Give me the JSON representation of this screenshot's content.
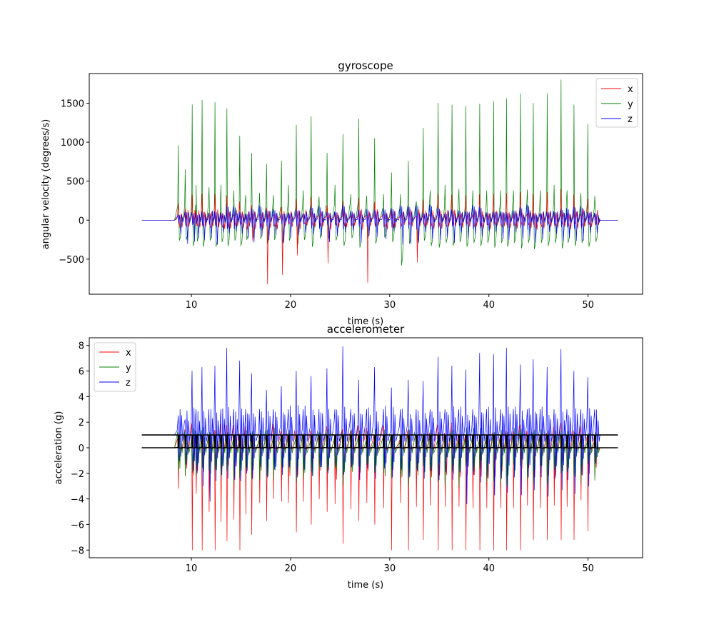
{
  "chart_data": [
    {
      "type": "line",
      "title": "gyroscope",
      "xlabel": "time (s)",
      "ylabel": "angular velocity (degrees/s)",
      "xlim": [
        -0.3,
        55.5
      ],
      "ylim": [
        -950,
        1880
      ],
      "xticks": [
        10,
        20,
        30,
        40,
        50
      ],
      "yticks": [
        -500,
        0,
        500,
        1000,
        1500
      ],
      "legend": "top-right",
      "trace_start": 5,
      "trace_end": 53,
      "idle_start": 8.3,
      "idle_end": 51.2,
      "series": [
        {
          "name": "x",
          "color": "#ff0000"
        },
        {
          "name": "y",
          "color": "#008000"
        },
        {
          "name": "z",
          "color": "#0000ff"
        }
      ],
      "events": {
        "t": [
          8.7,
          9.4,
          10.1,
          10.5,
          11.1,
          11.8,
          12.4,
          13.0,
          13.6,
          14.3,
          14.9,
          15.5,
          16.1,
          16.9,
          17.6,
          18.3,
          19.1,
          19.8,
          20.6,
          21.3,
          22.1,
          22.9,
          23.7,
          24.5,
          25.3,
          26.1,
          26.9,
          27.7,
          28.5,
          29.4,
          30.2,
          31.1,
          31.9,
          32.7,
          33.4,
          34.1,
          34.9,
          35.6,
          36.3,
          37.0,
          37.7,
          38.4,
          39.1,
          39.8,
          40.5,
          41.2,
          41.8,
          42.5,
          43.2,
          43.9,
          44.5,
          45.2,
          45.9,
          46.6,
          47.3,
          47.9,
          48.6,
          49.3,
          50.0,
          50.7
        ],
        "gyro_y_peak": [
          960,
          650,
          1480,
          450,
          1540,
          420,
          1510,
          450,
          1430,
          380,
          1080,
          320,
          860,
          350,
          720,
          320,
          760,
          450,
          1220,
          380,
          1330,
          300,
          860,
          450,
          1100,
          330,
          1300,
          310,
          1050,
          330,
          610,
          330,
          760,
          240,
          1180,
          380,
          1500,
          450,
          1480,
          400,
          1460,
          380,
          1490,
          380,
          1520,
          380,
          1560,
          380,
          1620,
          390,
          1500,
          380,
          1620,
          450,
          1800,
          380,
          1480,
          350,
          1230,
          310
        ],
        "gyro_y_trough": [
          -260,
          -250,
          -330,
          -270,
          -340,
          -260,
          -340,
          -280,
          -330,
          -260,
          -330,
          -250,
          -230,
          -240,
          -300,
          -250,
          -300,
          -260,
          -330,
          -250,
          -340,
          -230,
          -250,
          -260,
          -330,
          -230,
          -350,
          -230,
          -300,
          -220,
          -280,
          -580,
          -300,
          -280,
          -260,
          -330,
          -350,
          -290,
          -330,
          -280,
          -340,
          -290,
          -330,
          -290,
          -350,
          -290,
          -340,
          -290,
          -360,
          -290,
          -370,
          -290,
          -330,
          -290,
          -360,
          -290,
          -330,
          -290,
          -340,
          -280
        ],
        "gyro_x_low": [
          -20,
          -40,
          -30,
          -70,
          -40,
          -80,
          -30,
          -70,
          -40,
          -70,
          -30,
          -120,
          -260,
          -40,
          -820,
          -60,
          -700,
          -40,
          -450,
          -40,
          -30,
          -40,
          -550,
          -40,
          -30,
          -80,
          -30,
          -800,
          -30,
          -80,
          -30,
          -80,
          -30,
          -540,
          -30,
          -80,
          -30,
          -60,
          -30,
          -60,
          -30,
          -80,
          -30,
          -60,
          -30,
          -70,
          -30,
          -60,
          -30,
          -60,
          -30,
          -70,
          -30,
          -60,
          -30,
          -70,
          -30,
          -80,
          -30,
          -60
        ],
        "acc_z_peak": [
          2.5,
          2.2,
          6.0,
          3.0,
          6.3,
          3.0,
          6.4,
          3.0,
          7.8,
          3.0,
          6.8,
          3.0,
          5.8,
          3.0,
          4.5,
          3.0,
          4.8,
          3.0,
          6.0,
          3.0,
          5.6,
          3.0,
          6.2,
          3.0,
          7.9,
          3.0,
          5.3,
          3.0,
          6.3,
          3.0,
          4.7,
          3.0,
          5.3,
          3.0,
          5.2,
          3.0,
          7.1,
          3.0,
          6.4,
          3.0,
          6.1,
          3.0,
          7.4,
          3.0,
          7.3,
          3.0,
          7.8,
          3.0,
          6.5,
          3.0,
          6.9,
          3.0,
          6.3,
          3.0,
          7.7,
          3.0,
          6.0,
          3.0,
          5.5,
          3.0
        ],
        "acc_x_low": [
          -3.2,
          -2.2,
          -8.0,
          -3.6,
          -8.0,
          -5.0,
          -8.0,
          -5.8,
          -7.3,
          -5.6,
          -8.0,
          -5.2,
          -6.8,
          -4.3,
          -5.7,
          -4.0,
          -4.2,
          -4.3,
          -6.6,
          -4.2,
          -6.0,
          -4.0,
          -5.0,
          -4.4,
          -7.5,
          -4.8,
          -5.7,
          -4.3,
          -6.0,
          -4.7,
          -8.0,
          -4.3,
          -8.0,
          -4.6,
          -7.2,
          -4.5,
          -8.0,
          -4.6,
          -8.0,
          -4.6,
          -8.0,
          -4.7,
          -8.0,
          -4.7,
          -8.0,
          -4.7,
          -8.0,
          -4.7,
          -8.0,
          -4.5,
          -7.2,
          -4.7,
          -7.2,
          -4.5,
          -7.2,
          -4.6,
          -7.2,
          -4.1,
          -6.5,
          -2.3
        ],
        "acc_z_low": [
          -1.0,
          -1.3,
          -1.8,
          -2.0,
          -3.0,
          -4.2,
          -2.6,
          -2.1,
          -2.4,
          -2.5,
          -2.6,
          -2.0,
          -2.4,
          -1.5,
          -2.3,
          -1.7,
          -2.1,
          -1.5,
          -2.3,
          -1.7,
          -2.2,
          -1.5,
          -2.0,
          -1.4,
          -2.1,
          -1.5,
          -2.5,
          -1.6,
          -2.4,
          -1.6,
          -2.3,
          -1.7,
          -2.3,
          -1.8,
          -2.4,
          -1.8,
          -2.5,
          -1.9,
          -2.5,
          -1.9,
          -4.4,
          -2.1,
          -2.7,
          -2.3,
          -3.7,
          -2.4,
          -3.5,
          -2.3,
          -3.7,
          -2.3,
          -3.3,
          -2.3,
          -3.8,
          -2.4,
          -3.3,
          -2.5,
          -3.6,
          -2.1,
          -3.0,
          -1.2
        ]
      }
    },
    {
      "type": "line",
      "title": "accelerometer",
      "xlabel": "time (s)",
      "ylabel": "acceleration (g)",
      "xlim": [
        -0.3,
        55.5
      ],
      "ylim": [
        -8.6,
        8.6
      ],
      "xticks": [
        10,
        20,
        30,
        40,
        50
      ],
      "yticks": [
        -8,
        -6,
        -4,
        -2,
        0,
        2,
        4,
        6,
        8
      ],
      "legend": "top-left",
      "baseline_levels": [
        0,
        1
      ],
      "series": [
        {
          "name": "x",
          "color": "#ff0000"
        },
        {
          "name": "y",
          "color": "#008000"
        },
        {
          "name": "z",
          "color": "#0000ff"
        }
      ]
    }
  ]
}
